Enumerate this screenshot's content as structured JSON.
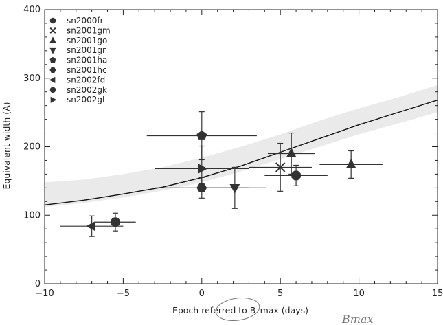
{
  "chart_data": {
    "type": "scatter",
    "title": "",
    "xlabel": "Epoch referred to B_max (days)",
    "ylabel": "Equivalent width (A)",
    "xlim": [
      -10,
      15
    ],
    "ylim": [
      0,
      400
    ],
    "xticks": [
      -10,
      -5,
      0,
      5,
      10,
      15
    ],
    "yticks": [
      0,
      100,
      200,
      300,
      400
    ],
    "grid": false,
    "legend_position": "top-left",
    "handwritten_note": "Bmax",
    "colors": {
      "data": "#333333",
      "fit_line": "#111111",
      "band": "#bbbbbb"
    },
    "series": [
      {
        "name": "sn2000fr",
        "marker": "circle",
        "points": [
          {
            "x": -5.5,
            "y": 90,
            "xerr": [
              1.3,
              1.3
            ],
            "yerr": [
              13,
              13
            ]
          }
        ]
      },
      {
        "name": "sn2001gm",
        "marker": "x",
        "points": [
          {
            "x": 5.0,
            "y": 170,
            "xerr": [
              2.0,
              2.0
            ],
            "yerr": [
              35,
              35
            ]
          }
        ]
      },
      {
        "name": "sn2001go",
        "marker": "triangle-up",
        "points": [
          {
            "x": 5.7,
            "y": 190,
            "xerr": [
              1.5,
              1.5
            ],
            "yerr": [
              30,
              30
            ]
          },
          {
            "x": 9.5,
            "y": 174,
            "xerr": [
              2.0,
              2.0
            ],
            "yerr": [
              20,
              20
            ]
          }
        ]
      },
      {
        "name": "sn2001gr",
        "marker": "triangle-down",
        "points": [
          {
            "x": 2.1,
            "y": 140,
            "xerr": [
              2.0,
              2.0
            ],
            "yerr": [
              30,
              30
            ]
          }
        ]
      },
      {
        "name": "sn2001ha",
        "marker": "pentagon",
        "points": [
          {
            "x": 0.0,
            "y": 216,
            "xerr": [
              3.5,
              3.5
            ],
            "yerr": [
              35,
              35
            ]
          }
        ]
      },
      {
        "name": "sn2001hc",
        "marker": "hexagon",
        "points": [
          {
            "x": 0.0,
            "y": 140,
            "xerr": [
              3.0,
              3.0
            ],
            "yerr": [
              15,
              15
            ]
          }
        ]
      },
      {
        "name": "sn2002fd",
        "marker": "triangle-left",
        "points": [
          {
            "x": -7.0,
            "y": 84,
            "xerr": [
              2.0,
              2.0
            ],
            "yerr": [
              15,
              15
            ]
          }
        ]
      },
      {
        "name": "sn2002gk",
        "marker": "octagon",
        "points": [
          {
            "x": 6.0,
            "y": 158,
            "xerr": [
              2.0,
              2.0
            ],
            "yerr": [
              15,
              15
            ]
          }
        ]
      },
      {
        "name": "sn2002gl",
        "marker": "triangle-right",
        "points": [
          {
            "x": 0.0,
            "y": 168,
            "xerr": [
              3.0,
              3.0
            ],
            "yerr": [
              33,
              33
            ]
          }
        ]
      }
    ],
    "fit_curve": {
      "x": [
        -10,
        -7.5,
        -5,
        -2.5,
        0,
        2.5,
        5,
        7.5,
        10,
        12.5,
        15
      ],
      "y": [
        115,
        122,
        131,
        141,
        155,
        172,
        192,
        212,
        232,
        250,
        268
      ]
    },
    "uncertainty_band": {
      "x": [
        -10,
        -7.5,
        -5,
        -2.5,
        0,
        2.5,
        5,
        7.5,
        10,
        12.5,
        15
      ],
      "upper": [
        148,
        152,
        160,
        170,
        184,
        200,
        218,
        238,
        256,
        272,
        290
      ],
      "lower": [
        112,
        118,
        126,
        136,
        148,
        164,
        182,
        200,
        218,
        234,
        250
      ]
    }
  }
}
